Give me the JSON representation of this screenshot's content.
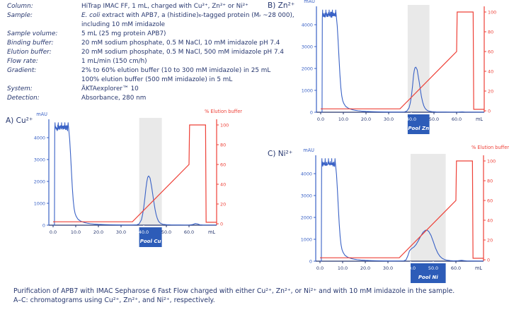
{
  "colors": {
    "text_navy": "#26366e",
    "curve_blue": "#3a62c6",
    "gradient_red": "#ee4037",
    "pool_fill": "#2d5cb8",
    "pool_band": "#e9e9e9",
    "background": "#ffffff"
  },
  "method_table": {
    "rows": [
      {
        "label": "Column:",
        "value_lines": [
          [
            {
              "t": "HiTrap IMAC FF, 1 mL, charged with Cu²⁺, Zn²⁺ or Ni²⁺"
            }
          ]
        ]
      },
      {
        "label": "Sample:",
        "value_lines": [
          [
            {
              "t": "E. coli",
              "i": true
            },
            {
              "t": " extract with APB7, a (histidine)₆-tagged protein (Mᵣ ~28 000),"
            }
          ],
          [
            {
              "t": "including 10 mM imidazole"
            }
          ]
        ]
      },
      {
        "label": "Sample volume:",
        "value_lines": [
          [
            {
              "t": "5 mL (25 mg protein APB7)"
            }
          ]
        ]
      },
      {
        "label": "Binding buffer:",
        "value_lines": [
          [
            {
              "t": "20 mM sodium phosphate, 0.5 M NaCl, 10 mM imidazole pH 7.4"
            }
          ]
        ]
      },
      {
        "label": "Elution buffer:",
        "value_lines": [
          [
            {
              "t": "20 mM sodium phosphate, 0.5 M NaCl, 500 mM imidazole pH 7.4"
            }
          ]
        ]
      },
      {
        "label": "Flow rate:",
        "value_lines": [
          [
            {
              "t": "1 mL/min (150 cm/h)"
            }
          ]
        ]
      },
      {
        "label": "Gradient:",
        "value_lines": [
          [
            {
              "t": "2% to 60% elution buffer (10 to 300 mM imidazole) in 25 mL"
            }
          ],
          [
            {
              "t": "100% elution buffer (500 mM imidazole) in 5 mL"
            }
          ]
        ]
      },
      {
        "label": "System:",
        "value_lines": [
          [
            {
              "t": "ÄKTAexplorer™ 10"
            }
          ]
        ]
      },
      {
        "label": "Detection:",
        "value_lines": [
          [
            {
              "t": "Absorbance, 280 nm"
            }
          ]
        ]
      }
    ]
  },
  "caption": {
    "line1": "Purification of APB7 with IMAC Sepharose 6 Fast Flow charged with either Cu²⁺, Zn²⁺, or Ni²⁺ and with 10 mM imidazole in the sample.",
    "line2": "A–C: chromatograms using Cu²⁺, Zn²⁺, and Ni²⁺, respectively."
  },
  "chart_data": [
    {
      "type": "line",
      "panel": "A",
      "panel_label": "A) Cu²⁺",
      "metal": "Cu²⁺",
      "xlabel": "mL",
      "ylabel": "mAU",
      "y2label": "% Elution buffer",
      "xlim": [
        0,
        70
      ],
      "ylim": [
        0,
        4800
      ],
      "y2lim": [
        0,
        100
      ],
      "x_ticks": [
        0,
        10,
        20,
        30,
        40,
        50,
        60
      ],
      "y_ticks": [
        0,
        1000,
        2000,
        3000,
        4000
      ],
      "y2_ticks": [
        0,
        20,
        40,
        60,
        80,
        100
      ],
      "pool": {
        "label": "Pool Cu",
        "from": 38,
        "to": 48
      },
      "flowthrough_plateau": {
        "from": 0.85,
        "to": 6.7,
        "level": 4510,
        "noise": 150,
        "seed": 5
      },
      "uv_mAU": [
        [
          0,
          8
        ],
        [
          0.6,
          8
        ],
        [
          0.72,
          4300
        ],
        [
          6.9,
          4380
        ],
        [
          7.3,
          3950
        ],
        [
          7.7,
          3250
        ],
        [
          8.1,
          2450
        ],
        [
          8.5,
          1700
        ],
        [
          8.9,
          1120
        ],
        [
          9.3,
          750
        ],
        [
          9.7,
          540
        ],
        [
          10.2,
          400
        ],
        [
          11,
          270
        ],
        [
          12,
          195
        ],
        [
          13,
          148
        ],
        [
          14,
          115
        ],
        [
          15,
          92
        ],
        [
          16.5,
          68
        ],
        [
          18,
          52
        ],
        [
          20,
          38
        ],
        [
          22.5,
          27
        ],
        [
          25,
          20
        ],
        [
          28,
          14
        ],
        [
          31,
          11
        ],
        [
          33,
          10
        ],
        [
          35,
          10
        ],
        [
          37,
          18
        ],
        [
          38,
          60
        ],
        [
          39,
          250
        ],
        [
          39.5,
          480
        ],
        [
          40,
          800
        ],
        [
          40.5,
          1230
        ],
        [
          41,
          1700
        ],
        [
          41.4,
          2000
        ],
        [
          41.8,
          2200
        ],
        [
          42.2,
          2250
        ],
        [
          42.8,
          2150
        ],
        [
          43.5,
          1750
        ],
        [
          44,
          1400
        ],
        [
          44.5,
          1050
        ],
        [
          45,
          730
        ],
        [
          45.5,
          480
        ],
        [
          46,
          310
        ],
        [
          46.5,
          190
        ],
        [
          47,
          125
        ],
        [
          47.5,
          80
        ],
        [
          48.5,
          40
        ],
        [
          50,
          22
        ],
        [
          52,
          13
        ],
        [
          55,
          10
        ],
        [
          58,
          8
        ],
        [
          60,
          8
        ],
        [
          61.5,
          25
        ],
        [
          62.8,
          75
        ],
        [
          63.8,
          55
        ],
        [
          64.8,
          18
        ],
        [
          66,
          10
        ],
        [
          72.2,
          8
        ]
      ],
      "elution_pct": [
        [
          0,
          2
        ],
        [
          35,
          2
        ],
        [
          60,
          60
        ],
        [
          60.25,
          100
        ],
        [
          67.3,
          100
        ],
        [
          67.55,
          1.5
        ],
        [
          72.2,
          1.5
        ]
      ]
    },
    {
      "type": "line",
      "panel": "B",
      "panel_label": "B) Zn²⁺",
      "metal": "Zn²⁺",
      "xlabel": "mL",
      "ylabel": "mAU",
      "y2label": "% Elution buffer",
      "xlim": [
        0,
        70
      ],
      "ylim": [
        0,
        4800
      ],
      "y2lim": [
        0,
        100
      ],
      "x_ticks": [
        0,
        10,
        20,
        30,
        40,
        50,
        60
      ],
      "y_ticks": [
        0,
        1000,
        2000,
        3000,
        4000
      ],
      "y2_ticks": [
        0,
        20,
        40,
        60,
        80,
        100
      ],
      "pool": {
        "label": "Pool Zn",
        "from": 38.4,
        "to": 48
      },
      "flowthrough_plateau": {
        "from": 0.85,
        "to": 6.7,
        "level": 4500,
        "noise": 150,
        "seed": 9
      },
      "uv_mAU": [
        [
          0,
          8
        ],
        [
          0.6,
          8
        ],
        [
          0.72,
          4300
        ],
        [
          6.9,
          4380
        ],
        [
          7.3,
          3950
        ],
        [
          7.7,
          3250
        ],
        [
          8.1,
          2450
        ],
        [
          8.5,
          1700
        ],
        [
          8.9,
          1120
        ],
        [
          9.3,
          750
        ],
        [
          9.7,
          540
        ],
        [
          10.2,
          400
        ],
        [
          11,
          270
        ],
        [
          12,
          195
        ],
        [
          13,
          148
        ],
        [
          14,
          115
        ],
        [
          15,
          92
        ],
        [
          16.5,
          68
        ],
        [
          18,
          52
        ],
        [
          20,
          38
        ],
        [
          22.5,
          27
        ],
        [
          25,
          20
        ],
        [
          28,
          14
        ],
        [
          31,
          11
        ],
        [
          33,
          10
        ],
        [
          35,
          10
        ],
        [
          37,
          15
        ],
        [
          38,
          50
        ],
        [
          39,
          200
        ],
        [
          39.5,
          400
        ],
        [
          40,
          700
        ],
        [
          40.5,
          1150
        ],
        [
          41,
          1700
        ],
        [
          41.3,
          1900
        ],
        [
          41.6,
          2030
        ],
        [
          42,
          2060
        ],
        [
          42.6,
          1940
        ],
        [
          43,
          1680
        ],
        [
          43.5,
          1380
        ],
        [
          44,
          1020
        ],
        [
          44.5,
          700
        ],
        [
          45,
          470
        ],
        [
          45.5,
          300
        ],
        [
          46,
          195
        ],
        [
          46.5,
          130
        ],
        [
          47,
          88
        ],
        [
          47.5,
          60
        ],
        [
          49,
          28
        ],
        [
          51,
          14
        ],
        [
          55,
          9
        ],
        [
          58,
          8
        ],
        [
          61,
          10
        ],
        [
          62.5,
          18
        ],
        [
          63.5,
          12
        ],
        [
          65,
          8
        ],
        [
          72.2,
          7
        ]
      ],
      "elution_pct": [
        [
          0,
          2
        ],
        [
          35,
          2
        ],
        [
          60,
          60
        ],
        [
          60.25,
          100
        ],
        [
          67.3,
          100
        ],
        [
          67.55,
          1.5
        ],
        [
          72.2,
          1.5
        ]
      ]
    },
    {
      "type": "line",
      "panel": "C",
      "panel_label": "C) Ni²⁺",
      "metal": "Ni²⁺",
      "xlabel": "mL",
      "ylabel": "mAU",
      "y2label": "% Elution buffer",
      "xlim": [
        0,
        70
      ],
      "ylim": [
        0,
        4800
      ],
      "y2lim": [
        0,
        100
      ],
      "x_ticks": [
        0,
        10,
        20,
        30,
        40,
        50,
        60
      ],
      "y_ticks": [
        0,
        1000,
        2000,
        3000,
        4000
      ],
      "y2_ticks": [
        0,
        20,
        40,
        60,
        80,
        100
      ],
      "pool": {
        "label": "Pool Ni",
        "from": 40,
        "to": 55.5
      },
      "flowthrough_plateau": {
        "from": 0.85,
        "to": 6.7,
        "level": 4510,
        "noise": 155,
        "seed": 13
      },
      "uv_mAU": [
        [
          0,
          8
        ],
        [
          0.6,
          8
        ],
        [
          0.72,
          4300
        ],
        [
          6.9,
          4380
        ],
        [
          7.3,
          3950
        ],
        [
          7.7,
          3250
        ],
        [
          8.1,
          2450
        ],
        [
          8.5,
          1700
        ],
        [
          8.9,
          1120
        ],
        [
          9.3,
          750
        ],
        [
          9.7,
          540
        ],
        [
          10.2,
          400
        ],
        [
          11,
          270
        ],
        [
          12,
          195
        ],
        [
          13,
          148
        ],
        [
          14,
          115
        ],
        [
          15,
          92
        ],
        [
          16.5,
          68
        ],
        [
          18,
          52
        ],
        [
          20,
          38
        ],
        [
          22.5,
          27
        ],
        [
          25,
          20
        ],
        [
          28,
          14
        ],
        [
          31,
          11
        ],
        [
          33,
          10
        ],
        [
          35,
          12
        ],
        [
          37,
          16
        ],
        [
          38,
          60
        ],
        [
          38.8,
          250
        ],
        [
          39.5,
          470
        ],
        [
          40.5,
          580
        ],
        [
          41.5,
          650
        ],
        [
          42.5,
          770
        ],
        [
          43.5,
          950
        ],
        [
          44.5,
          1150
        ],
        [
          45.5,
          1320
        ],
        [
          46.5,
          1408
        ],
        [
          47.2,
          1420
        ],
        [
          48,
          1360
        ],
        [
          49,
          1180
        ],
        [
          50,
          900
        ],
        [
          51,
          600
        ],
        [
          52,
          370
        ],
        [
          53,
          215
        ],
        [
          54,
          125
        ],
        [
          55,
          75
        ],
        [
          56,
          45
        ],
        [
          57.5,
          25
        ],
        [
          59,
          15
        ],
        [
          61,
          22
        ],
        [
          62.5,
          38
        ],
        [
          63.5,
          26
        ],
        [
          65,
          12
        ],
        [
          67,
          9
        ],
        [
          72.2,
          8
        ]
      ],
      "elution_pct": [
        [
          0,
          2
        ],
        [
          35,
          2
        ],
        [
          60,
          60
        ],
        [
          60.25,
          100
        ],
        [
          67.3,
          100
        ],
        [
          67.55,
          1.5
        ],
        [
          72.2,
          1.5
        ]
      ]
    }
  ]
}
